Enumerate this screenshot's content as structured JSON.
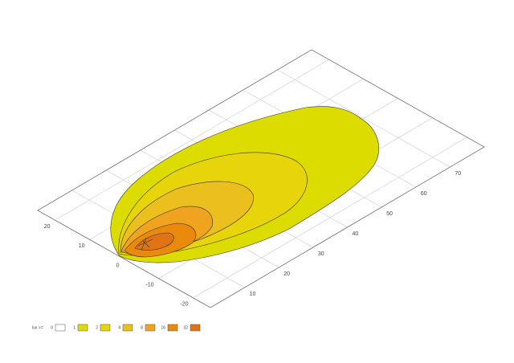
{
  "chart_data": {
    "type": "contour",
    "xlim": [
      0,
      80
    ],
    "ylim": [
      -25,
      25
    ],
    "xticks": [
      10,
      20,
      30,
      40,
      50,
      60,
      70
    ],
    "yticks": [
      20,
      10,
      0,
      -10,
      -20
    ],
    "grid": true,
    "legend_title": "lux >=",
    "levels": [
      0,
      1,
      2,
      4,
      8,
      16,
      32
    ],
    "colors": [
      "#ffffff",
      "#dcdc00",
      "#e8d40a",
      "#ebbf1e",
      "#f0a31e",
      "#ea8a0c",
      "#e07414"
    ]
  }
}
